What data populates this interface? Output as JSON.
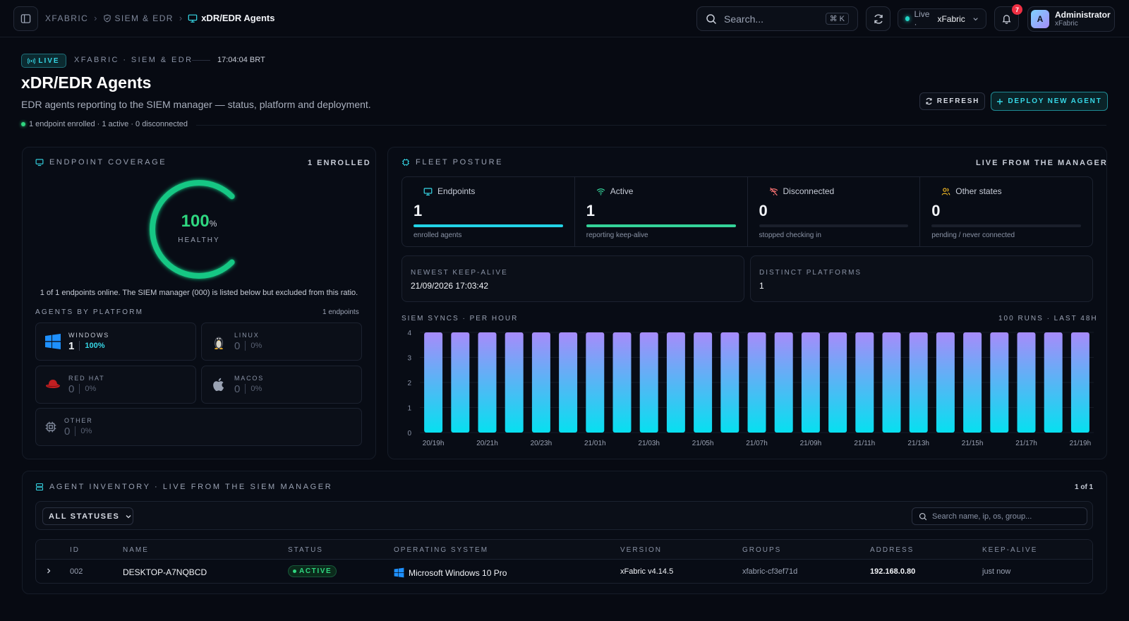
{
  "topbar": {
    "breadcrumb": [
      "XFABRIC",
      "SIEM & EDR"
    ],
    "current": "xDR/EDR Agents",
    "search_placeholder": "Search...",
    "search_shortcut": "⌘ K",
    "live_label": "Live ·",
    "live_org": "xFabric",
    "notifications": "7",
    "user_initial": "A",
    "user_name": "Administrator",
    "user_org": "xFabric"
  },
  "header": {
    "live_pill": "LIVE",
    "eyebrow": "XFABRIC · SIEM & EDR",
    "clock": "17:04:04 BRT",
    "title": "xDR/EDR Agents",
    "subtitle": "EDR agents reporting to the SIEM manager — status, platform and deployment.",
    "status_line": "1 endpoint enrolled · 1 active · 0 disconnected",
    "refresh_label": "REFRESH",
    "deploy_label": "DEPLOY NEW AGENT"
  },
  "coverage": {
    "title": "ENDPOINT COVERAGE",
    "enrolled": "1 ENROLLED",
    "percent_value": "100",
    "percent_unit": "%",
    "healthy_fraction": 1.0,
    "gauge_label": "HEALTHY",
    "note": "1 of 1 endpoints online. The SIEM manager (000) is listed below but excluded from this ratio.",
    "platforms_title": "AGENTS BY PLATFORM",
    "platforms_count": "1 endpoints",
    "platforms": [
      {
        "name": "WINDOWS",
        "count": "1",
        "pct": "100%"
      },
      {
        "name": "LINUX",
        "count": "0",
        "pct": "0%"
      },
      {
        "name": "RED HAT",
        "count": "0",
        "pct": "0%"
      },
      {
        "name": "MACOS",
        "count": "0",
        "pct": "0%"
      },
      {
        "name": "OTHER",
        "count": "0",
        "pct": "0%"
      }
    ]
  },
  "fleet": {
    "title": "FLEET POSTURE",
    "right": "LIVE FROM THE MANAGER",
    "stats": [
      {
        "label": "Endpoints",
        "value": "1",
        "desc": "enrolled agents",
        "fill": 1.0,
        "color": "#22d3e6"
      },
      {
        "label": "Active",
        "value": "1",
        "desc": "reporting keep-alive",
        "fill": 1.0,
        "color": "#34d399"
      },
      {
        "label": "Disconnected",
        "value": "0",
        "desc": "stopped checking in",
        "fill": 0.0,
        "color": "#f87171"
      },
      {
        "label": "Other states",
        "value": "0",
        "desc": "pending / never connected",
        "fill": 0.0,
        "color": "#fbbf24"
      }
    ],
    "newest_label": "NEWEST KEEP-ALIVE",
    "newest_value": "21/09/2026 17:03:42",
    "distinct_label": "DISTINCT PLATFORMS",
    "distinct_value": "1"
  },
  "chart_data": {
    "type": "bar",
    "title": "SIEM SYNCS · PER HOUR",
    "right_label": "100 RUNS · LAST 48H",
    "yticks": [
      0,
      1,
      2,
      3,
      4
    ],
    "ylim": [
      0,
      4
    ],
    "tick_labels": [
      "20/19h",
      "20/21h",
      "20/23h",
      "21/01h",
      "21/03h",
      "21/05h",
      "21/07h",
      "21/09h",
      "21/11h",
      "21/13h",
      "21/15h",
      "21/17h",
      "21/19h"
    ],
    "values": [
      4,
      4,
      4,
      4,
      4,
      4,
      4,
      4,
      4,
      4,
      4,
      4,
      4,
      4,
      4,
      4,
      4,
      4,
      4,
      4,
      4,
      4,
      4,
      4,
      4
    ],
    "colors": [
      "#a78bfa",
      "#06e0f0"
    ]
  },
  "inventory": {
    "title": "AGENT INVENTORY · LIVE FROM THE SIEM MANAGER",
    "pager": "1 of 1",
    "status_filter": "ALL STATUSES",
    "search_placeholder": "Search name, ip, os, group...",
    "columns": [
      "ID",
      "NAME",
      "STATUS",
      "OPERATING SYSTEM",
      "VERSION",
      "GROUPS",
      "ADDRESS",
      "KEEP-ALIVE"
    ],
    "rows": [
      {
        "id": "002",
        "name": "DESKTOP-A7NQBCD",
        "status": "ACTIVE",
        "os": "Microsoft Windows 10 Pro",
        "version": "xFabric v4.14.5",
        "groups": "xfabric-cf3ef71d",
        "address": "192.168.0.80",
        "keepalive": "just now"
      }
    ]
  }
}
